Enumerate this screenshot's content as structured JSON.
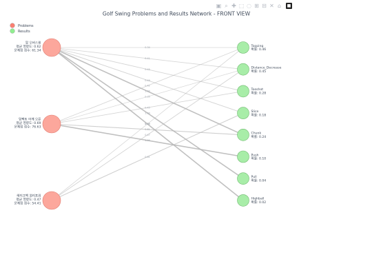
{
  "modebar": {
    "icons": [
      "camera-icon",
      "zoom-icon",
      "pan-icon",
      "box-select-icon",
      "lasso-icon",
      "zoom-in-icon",
      "zoom-out-icon",
      "autoscale-icon",
      "reset-axes-icon",
      "plotly-logo-icon"
    ],
    "glyphs": [
      "▣",
      "⌕",
      "✚",
      "⬚",
      "◌",
      "⊞",
      "⊟",
      "✕",
      "⌂",
      "■"
    ]
  },
  "chart_data": {
    "type": "network",
    "title": "Golf Swing Problems and Results Network - FRONT VIEW",
    "legend": {
      "placement": "top-left",
      "entries": [
        {
          "name": "Problems",
          "color": "#fa8072"
        },
        {
          "name": "Results",
          "color": "#90ee90"
        }
      ]
    },
    "problems": [
      {
        "name": "팔 오버스윙",
        "avg_influence": "평균 영향도: 0.62",
        "score": "문제점 점수: 61.34"
      },
      {
        "name": "임팩트 어깨 오픈",
        "avg_influence": "평균 영향도: 0.69",
        "score": "문제점 점수: 76.63"
      },
      {
        "name": "헤이크백 얼리포워",
        "avg_influence": "평균 영향도: 0.47",
        "score": "문제점 점수: 54.41"
      }
    ],
    "results": [
      {
        "name": "Topping",
        "prob": "확률: 0.46"
      },
      {
        "name": "Distance_Decrease",
        "prob": "확률: 0.45"
      },
      {
        "name": "Toeshot",
        "prob": "확률: 0.28"
      },
      {
        "name": "Slice",
        "prob": "확률: 0.18"
      },
      {
        "name": "Chunk",
        "prob": "확률: 0.24"
      },
      {
        "name": "Push",
        "prob": "확률: 0.10"
      },
      {
        "name": "Pull",
        "prob": "확률: 0.04"
      },
      {
        "name": "Highball",
        "prob": "확률: 0.02"
      }
    ],
    "edges": [
      {
        "from": 0,
        "to": 0,
        "weight": 0.34,
        "label": "0.34"
      },
      {
        "from": 0,
        "to": 1,
        "weight": 0.41,
        "label": "0.41"
      },
      {
        "from": 0,
        "to": 2,
        "weight": 0.45,
        "label": "0.45"
      },
      {
        "from": 0,
        "to": 3,
        "weight": 0.49,
        "label": "0.49"
      },
      {
        "from": 0,
        "to": 4,
        "weight": 1.0,
        "label": "1.00"
      },
      {
        "from": 0,
        "to": 6,
        "weight": 1.0,
        "label": "1.00"
      },
      {
        "from": 0,
        "to": 7,
        "weight": 1.0,
        "label": "1.00"
      },
      {
        "from": 1,
        "to": 0,
        "weight": 0.42,
        "label": "0.42"
      },
      {
        "from": 1,
        "to": 1,
        "weight": 0.35,
        "label": "0.35"
      },
      {
        "from": 1,
        "to": 2,
        "weight": 0.45,
        "label": "0.45"
      },
      {
        "from": 1,
        "to": 4,
        "weight": 0.61,
        "label": "0.61"
      },
      {
        "from": 1,
        "to": 5,
        "weight": 1.0,
        "label": "1.00"
      },
      {
        "from": 2,
        "to": 0,
        "weight": 0.39,
        "label": "0.39"
      },
      {
        "from": 2,
        "to": 1,
        "weight": 0.47,
        "label": "0.47"
      },
      {
        "from": 2,
        "to": 3,
        "weight": 0.61,
        "label": "0.61"
      }
    ]
  }
}
